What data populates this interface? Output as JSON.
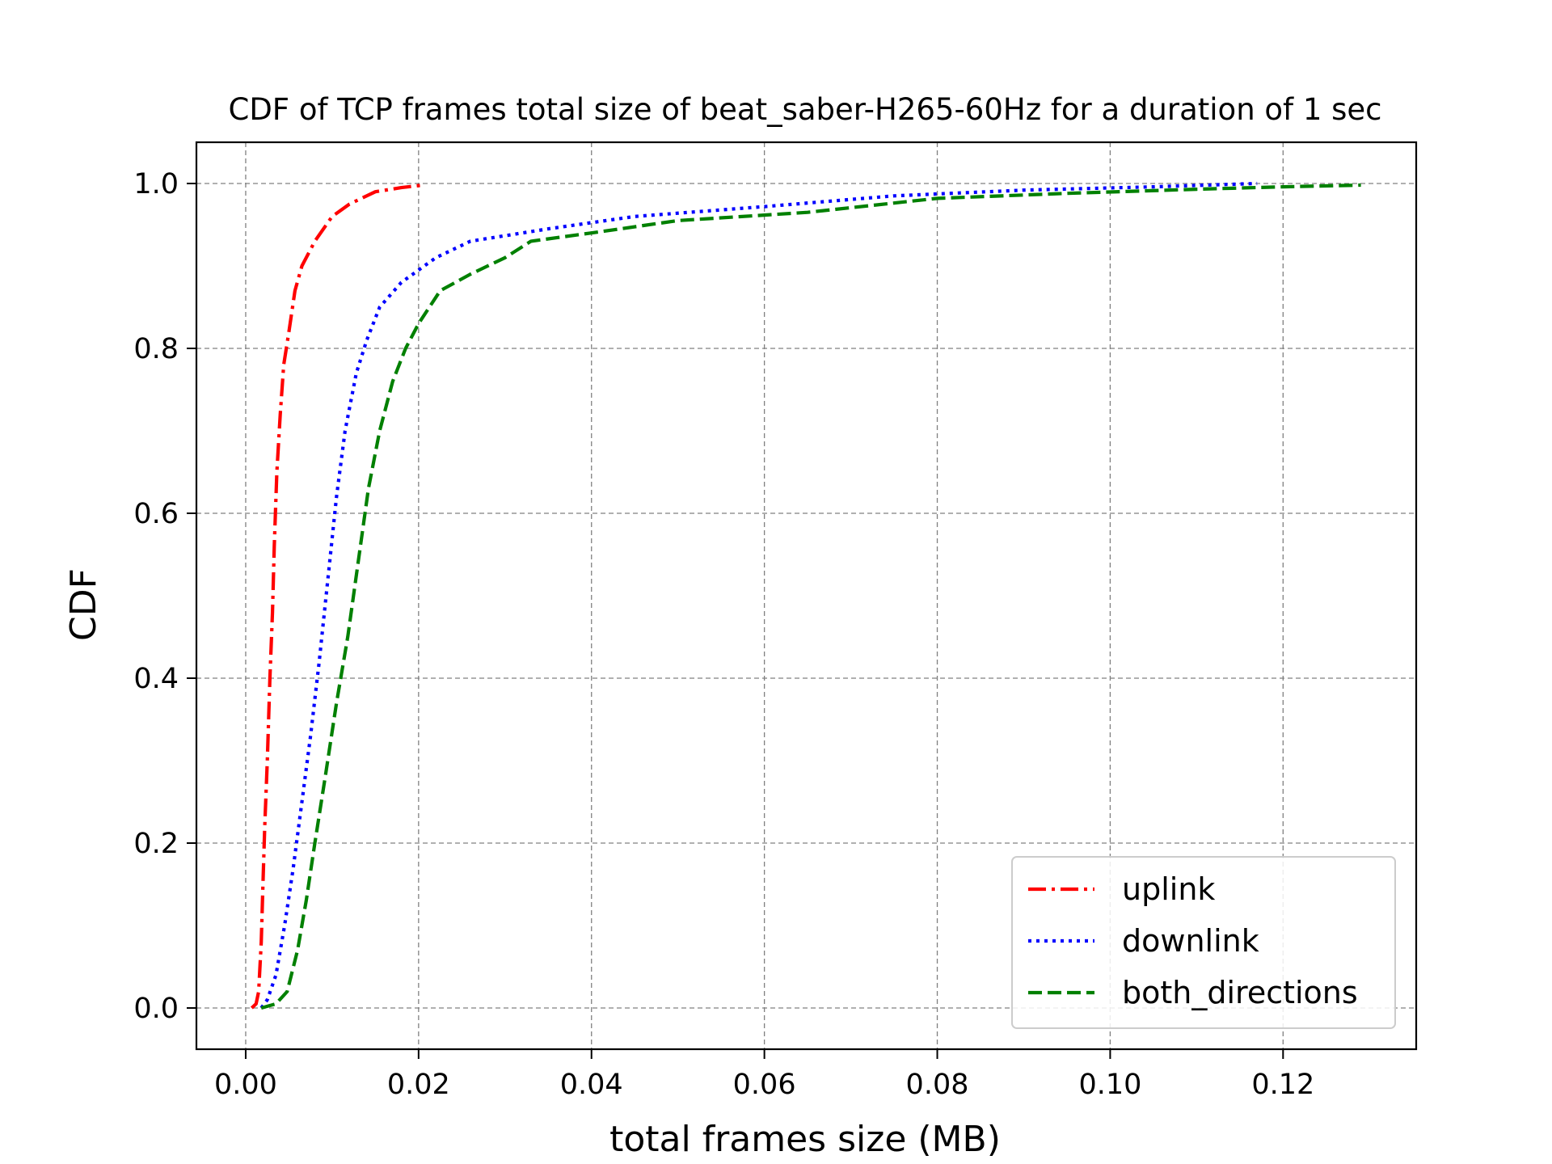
{
  "chart_data": {
    "type": "line",
    "title": "CDF of TCP frames total size of beat_saber-H265-60Hz for a duration of 1 sec",
    "xlabel": "total frames size (MB)",
    "ylabel": "CDF",
    "xlim": [
      -0.0057,
      0.1354
    ],
    "ylim": [
      -0.05,
      1.05
    ],
    "xticks": [
      "0.00",
      "0.02",
      "0.04",
      "0.06",
      "0.08",
      "0.10",
      "0.12"
    ],
    "yticks": [
      "0.0",
      "0.2",
      "0.4",
      "0.6",
      "0.8",
      "1.0"
    ],
    "grid": true,
    "legend_position": "lower-right",
    "series": [
      {
        "name": "uplink",
        "color": "#ff0000",
        "style": "dashdot",
        "points": [
          [
            0.0007,
            0.0
          ],
          [
            0.0012,
            0.005
          ],
          [
            0.0015,
            0.02
          ],
          [
            0.0018,
            0.08
          ],
          [
            0.002,
            0.15
          ],
          [
            0.0022,
            0.22
          ],
          [
            0.0025,
            0.3
          ],
          [
            0.0028,
            0.4
          ],
          [
            0.0031,
            0.48
          ],
          [
            0.0033,
            0.56
          ],
          [
            0.0036,
            0.65
          ],
          [
            0.004,
            0.72
          ],
          [
            0.0044,
            0.78
          ],
          [
            0.005,
            0.82
          ],
          [
            0.0057,
            0.87
          ],
          [
            0.0065,
            0.9
          ],
          [
            0.008,
            0.93
          ],
          [
            0.01,
            0.96
          ],
          [
            0.012,
            0.975
          ],
          [
            0.015,
            0.99
          ],
          [
            0.018,
            0.995
          ],
          [
            0.0205,
            0.998
          ]
        ]
      },
      {
        "name": "downlink",
        "color": "#0000ff",
        "style": "dotted",
        "points": [
          [
            0.0018,
            0.0
          ],
          [
            0.0025,
            0.01
          ],
          [
            0.0035,
            0.04
          ],
          [
            0.0045,
            0.1
          ],
          [
            0.0055,
            0.17
          ],
          [
            0.0065,
            0.25
          ],
          [
            0.0075,
            0.33
          ],
          [
            0.0085,
            0.42
          ],
          [
            0.0095,
            0.52
          ],
          [
            0.0105,
            0.62
          ],
          [
            0.0115,
            0.7
          ],
          [
            0.0128,
            0.77
          ],
          [
            0.014,
            0.81
          ],
          [
            0.0155,
            0.85
          ],
          [
            0.018,
            0.88
          ],
          [
            0.022,
            0.91
          ],
          [
            0.026,
            0.93
          ],
          [
            0.035,
            0.945
          ],
          [
            0.045,
            0.96
          ],
          [
            0.06,
            0.972
          ],
          [
            0.075,
            0.985
          ],
          [
            0.09,
            0.992
          ],
          [
            0.105,
            0.996
          ],
          [
            0.117,
            1.0
          ]
        ]
      },
      {
        "name": "both_directions",
        "color": "#008000",
        "style": "dashed",
        "points": [
          [
            0.0018,
            0.0
          ],
          [
            0.0035,
            0.005
          ],
          [
            0.0048,
            0.02
          ],
          [
            0.006,
            0.07
          ],
          [
            0.007,
            0.13
          ],
          [
            0.008,
            0.2
          ],
          [
            0.0092,
            0.28
          ],
          [
            0.0105,
            0.37
          ],
          [
            0.0118,
            0.45
          ],
          [
            0.013,
            0.54
          ],
          [
            0.0142,
            0.63
          ],
          [
            0.0155,
            0.7
          ],
          [
            0.017,
            0.76
          ],
          [
            0.0185,
            0.8
          ],
          [
            0.02,
            0.83
          ],
          [
            0.0225,
            0.87
          ],
          [
            0.026,
            0.89
          ],
          [
            0.03,
            0.91
          ],
          [
            0.033,
            0.93
          ],
          [
            0.04,
            0.94
          ],
          [
            0.05,
            0.955
          ],
          [
            0.065,
            0.965
          ],
          [
            0.08,
            0.982
          ],
          [
            0.095,
            0.988
          ],
          [
            0.11,
            0.993
          ],
          [
            0.12,
            0.996
          ],
          [
            0.129,
            0.998
          ]
        ]
      }
    ]
  }
}
